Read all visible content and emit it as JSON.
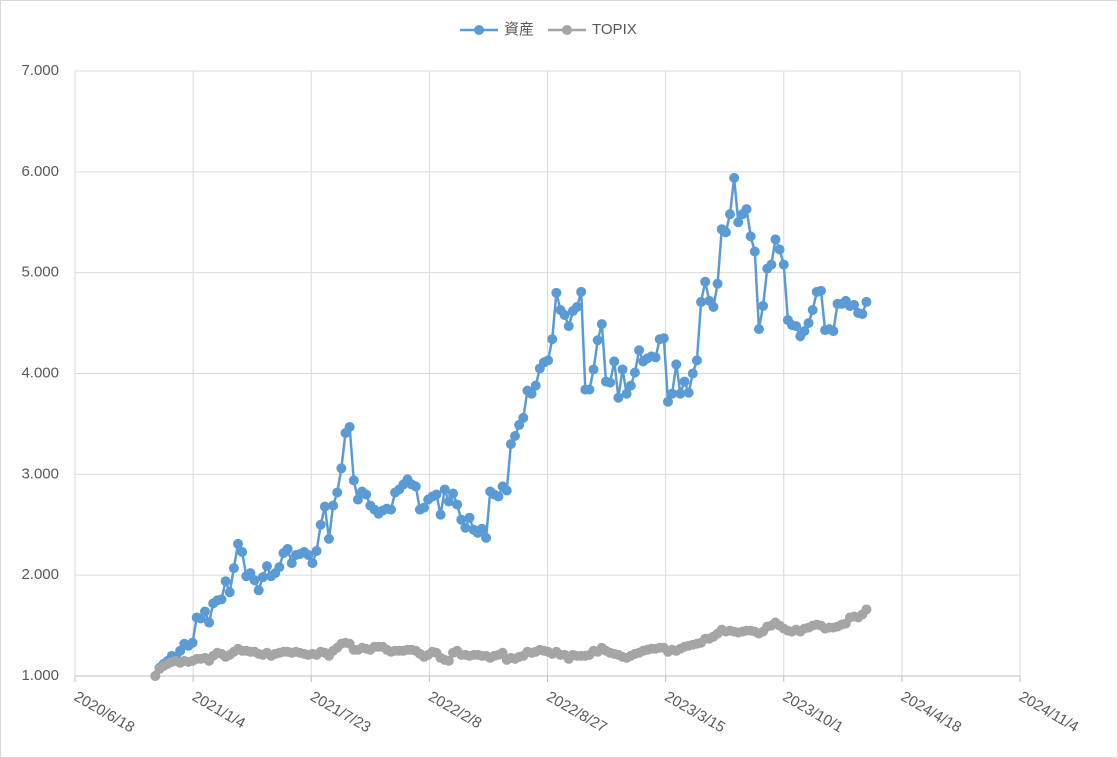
{
  "chart_data": {
    "type": "line",
    "x": [
      "2020/11/1",
      "2020/11/8",
      "2020/11/15",
      "2020/11/22",
      "2020/11/29",
      "2020/12/6",
      "2020/12/13",
      "2020/12/20",
      "2020/12/27",
      "2021/1/3",
      "2021/1/10",
      "2021/1/17",
      "2021/1/24",
      "2021/1/31",
      "2021/2/7",
      "2021/2/14",
      "2021/2/21",
      "2021/2/28",
      "2021/3/7",
      "2021/3/14",
      "2021/3/21",
      "2021/3/28",
      "2021/4/4",
      "2021/4/11",
      "2021/4/18",
      "2021/4/25",
      "2021/5/2",
      "2021/5/9",
      "2021/5/16",
      "2021/5/23",
      "2021/5/30",
      "2021/6/6",
      "2021/6/13",
      "2021/6/20",
      "2021/6/27",
      "2021/7/4",
      "2021/7/11",
      "2021/7/18",
      "2021/7/25",
      "2021/8/1",
      "2021/8/8",
      "2021/8/15",
      "2021/8/22",
      "2021/8/29",
      "2021/9/5",
      "2021/9/12",
      "2021/9/19",
      "2021/9/26",
      "2021/10/3",
      "2021/10/10",
      "2021/10/17",
      "2021/10/24",
      "2021/10/31",
      "2021/11/7",
      "2021/11/14",
      "2021/11/21",
      "2021/11/28",
      "2021/12/5",
      "2021/12/12",
      "2021/12/19",
      "2021/12/26",
      "2022/1/2",
      "2022/1/9",
      "2022/1/16",
      "2022/1/23",
      "2022/1/30",
      "2022/2/6",
      "2022/2/13",
      "2022/2/20",
      "2022/2/27",
      "2022/3/6",
      "2022/3/13",
      "2022/3/20",
      "2022/3/27",
      "2022/4/3",
      "2022/4/10",
      "2022/4/17",
      "2022/4/24",
      "2022/5/1",
      "2022/5/8",
      "2022/5/15",
      "2022/5/22",
      "2022/5/29",
      "2022/6/5",
      "2022/6/12",
      "2022/6/19",
      "2022/6/26",
      "2022/7/3",
      "2022/7/10",
      "2022/7/17",
      "2022/7/24",
      "2022/7/31",
      "2022/8/7",
      "2022/8/14",
      "2022/8/21",
      "2022/8/28",
      "2022/9/4",
      "2022/9/11",
      "2022/9/18",
      "2022/9/25",
      "2022/10/2",
      "2022/10/9",
      "2022/10/16",
      "2022/10/23",
      "2022/10/30",
      "2022/11/6",
      "2022/11/13",
      "2022/11/20",
      "2022/11/27",
      "2022/12/4",
      "2022/12/11",
      "2022/12/18",
      "2022/12/25",
      "2023/1/1",
      "2023/1/8",
      "2023/1/15",
      "2023/1/22",
      "2023/1/29",
      "2023/2/5",
      "2023/2/12",
      "2023/2/19",
      "2023/2/26",
      "2023/3/5",
      "2023/3/12",
      "2023/3/19",
      "2023/3/26",
      "2023/4/2",
      "2023/4/9",
      "2023/4/16",
      "2023/4/23",
      "2023/4/30",
      "2023/5/7",
      "2023/5/14",
      "2023/5/21",
      "2023/5/28",
      "2023/6/4",
      "2023/6/11",
      "2023/6/18",
      "2023/6/25",
      "2023/7/2",
      "2023/7/9",
      "2023/7/16",
      "2023/7/23",
      "2023/7/30",
      "2023/8/6",
      "2023/8/13",
      "2023/8/20",
      "2023/8/27",
      "2023/9/3",
      "2023/9/10",
      "2023/9/17",
      "2023/9/24",
      "2023/10/1",
      "2023/10/8",
      "2023/10/15",
      "2023/10/22",
      "2023/10/29",
      "2023/11/5",
      "2023/11/12",
      "2023/11/19",
      "2023/11/26",
      "2023/12/3",
      "2023/12/10",
      "2023/12/17",
      "2023/12/24",
      "2023/12/31",
      "2024/1/7",
      "2024/1/14",
      "2024/1/21",
      "2024/1/28",
      "2024/2/4",
      "2024/2/11",
      "2024/2/18"
    ],
    "series": [
      {
        "name": "資産",
        "color": "#5b9bd5",
        "values": [
          1000,
          1080,
          1120,
          1150,
          1200,
          1190,
          1250,
          1320,
          1300,
          1330,
          1580,
          1570,
          1640,
          1530,
          1720,
          1750,
          1760,
          1940,
          1830,
          2070,
          2310,
          2230,
          1990,
          2020,
          1950,
          1850,
          1980,
          2090,
          1990,
          2020,
          2080,
          2220,
          2260,
          2120,
          2200,
          2210,
          2230,
          2200,
          2120,
          2240,
          2500,
          2680,
          2360,
          2690,
          2820,
          3060,
          3410,
          3470,
          2940,
          2750,
          2830,
          2800,
          2690,
          2650,
          2610,
          2640,
          2660,
          2650,
          2820,
          2850,
          2900,
          2950,
          2900,
          2880,
          2650,
          2670,
          2750,
          2780,
          2800,
          2600,
          2850,
          2730,
          2810,
          2700,
          2550,
          2470,
          2570,
          2450,
          2420,
          2460,
          2370,
          2830,
          2800,
          2780,
          2880,
          2840,
          3300,
          3380,
          3490,
          3560,
          3830,
          3800,
          3880,
          4050,
          4110,
          4130,
          4340,
          4800,
          4630,
          4580,
          4470,
          4620,
          4660,
          4810,
          3840,
          3840,
          4040,
          4330,
          4490,
          3920,
          3910,
          4120,
          3760,
          4040,
          3800,
          3880,
          4010,
          4230,
          4120,
          4150,
          4170,
          4160,
          4340,
          4350,
          3720,
          3800,
          4090,
          3800,
          3920,
          3810,
          4000,
          4130,
          4710,
          4910,
          4720,
          4660,
          4890,
          5430,
          5400,
          5580,
          5940,
          5500,
          5580,
          5630,
          5360,
          5210,
          4440,
          4670,
          5040,
          5080,
          5330,
          5230,
          5080,
          4530,
          4480,
          4470,
          4370,
          4420,
          4500,
          4630,
          4810,
          4820,
          4430,
          4440,
          4420,
          4690,
          4690,
          4720,
          4670,
          4680,
          4600,
          4590,
          4710
        ]
      },
      {
        "name": "TOPIX",
        "color": "#a5a5a5",
        "values": [
          1000,
          1070,
          1100,
          1120,
          1140,
          1150,
          1130,
          1150,
          1140,
          1150,
          1170,
          1170,
          1180,
          1150,
          1200,
          1230,
          1220,
          1190,
          1210,
          1240,
          1270,
          1250,
          1250,
          1240,
          1240,
          1220,
          1210,
          1230,
          1200,
          1220,
          1230,
          1240,
          1240,
          1230,
          1240,
          1230,
          1220,
          1210,
          1220,
          1210,
          1240,
          1230,
          1200,
          1250,
          1280,
          1320,
          1330,
          1320,
          1260,
          1260,
          1280,
          1270,
          1260,
          1290,
          1290,
          1290,
          1260,
          1240,
          1250,
          1250,
          1250,
          1260,
          1260,
          1250,
          1220,
          1190,
          1210,
          1240,
          1230,
          1180,
          1160,
          1150,
          1230,
          1250,
          1210,
          1210,
          1200,
          1210,
          1210,
          1200,
          1200,
          1180,
          1200,
          1210,
          1230,
          1160,
          1180,
          1170,
          1190,
          1200,
          1240,
          1230,
          1240,
          1260,
          1250,
          1240,
          1220,
          1240,
          1210,
          1210,
          1170,
          1210,
          1200,
          1200,
          1200,
          1210,
          1250,
          1240,
          1280,
          1250,
          1230,
          1220,
          1210,
          1190,
          1180,
          1200,
          1220,
          1230,
          1250,
          1260,
          1270,
          1270,
          1280,
          1280,
          1240,
          1260,
          1250,
          1270,
          1290,
          1300,
          1310,
          1320,
          1330,
          1370,
          1370,
          1390,
          1420,
          1460,
          1440,
          1450,
          1440,
          1430,
          1440,
          1450,
          1450,
          1440,
          1420,
          1440,
          1490,
          1500,
          1530,
          1500,
          1470,
          1450,
          1440,
          1460,
          1440,
          1470,
          1480,
          1500,
          1510,
          1500,
          1470,
          1480,
          1480,
          1490,
          1510,
          1520,
          1580,
          1590,
          1580,
          1610,
          1660
        ]
      }
    ],
    "xlim": [
      "2020/6/18",
      "2024/11/4"
    ],
    "xticks": [
      "2020/6/18",
      "2021/1/4",
      "2021/7/23",
      "2022/2/8",
      "2022/8/27",
      "2023/3/15",
      "2023/10/1",
      "2024/4/18",
      "2024/11/4"
    ],
    "ylim": [
      1000,
      7000
    ],
    "yticks": [
      {
        "value": 1000,
        "label": "1.000"
      },
      {
        "value": 2000,
        "label": "2.000"
      },
      {
        "value": 3000,
        "label": "3.000"
      },
      {
        "value": 4000,
        "label": "4.000"
      },
      {
        "value": 5000,
        "label": "5.000"
      },
      {
        "value": 6000,
        "label": "6.000"
      },
      {
        "value": 7000,
        "label": "7.000"
      }
    ],
    "grid": true,
    "legend": "top"
  }
}
